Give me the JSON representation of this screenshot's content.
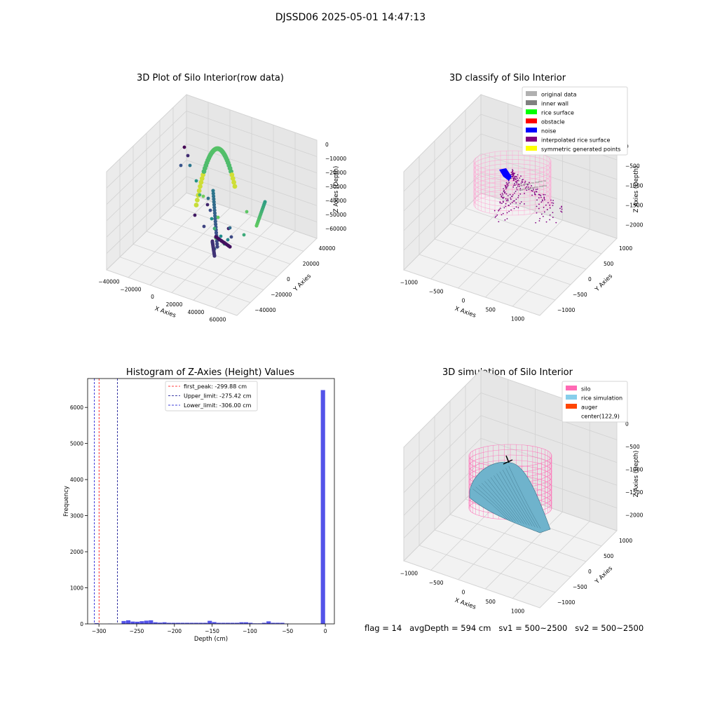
{
  "figure": {
    "suptitle": "DJSSD06 2025-05-01 14:47:13",
    "footer": "flag = 14   avgDepth = 594 cm   sv1 = 500~2500   sv2 = 500~2500"
  },
  "panels": {
    "raw": {
      "title": "3D Plot of Silo Interior(row data)",
      "xlabel": "X Axies",
      "ylabel": "Y Axies",
      "zlabel": "Z Axies (Depth)",
      "xticks": [
        "−40000",
        "−20000",
        "0",
        "20000",
        "40000",
        "60000"
      ],
      "yticks": [
        "−40000",
        "−20000",
        "0",
        "20000",
        "40000"
      ],
      "zticks": [
        "0",
        "−10000",
        "−20000",
        "−30000",
        "−40000",
        "−50000",
        "−60000"
      ]
    },
    "classify": {
      "title": "3D classify of Silo Interior",
      "xlabel": "X Axies",
      "ylabel": "Y Axies",
      "zlabel": "Z Axies (Depth)",
      "xticks": [
        "−1000",
        "−500",
        "0",
        "500",
        "1000"
      ],
      "yticks": [
        "−1000",
        "−500",
        "0",
        "500",
        "1000"
      ],
      "zticks": [
        "0",
        "−500",
        "−1000",
        "−1500",
        "−2000"
      ],
      "legend": [
        {
          "label": "original data",
          "color": "#b0b0b0"
        },
        {
          "label": "inner wall",
          "color": "#808080"
        },
        {
          "label": "rice surface",
          "color": "#00ff00"
        },
        {
          "label": "obstacle",
          "color": "#ff0000"
        },
        {
          "label": "noise",
          "color": "#0000ff"
        },
        {
          "label": "interpolated rice surface",
          "color": "#800080"
        },
        {
          "label": "symmetric generated points",
          "color": "#ffff00"
        }
      ]
    },
    "simulation": {
      "title": "3D simulation of Silo Interior",
      "xlabel": "X Axies",
      "ylabel": "Y Axies",
      "zlabel": "Z Axies (Depth)",
      "xticks": [
        "−1000",
        "−500",
        "0",
        "500",
        "1000"
      ],
      "yticks": [
        "−1000",
        "−500",
        "0",
        "500",
        "1000"
      ],
      "zticks": [
        "0",
        "−500",
        "−1000",
        "−1500",
        "−2000"
      ],
      "legend": [
        {
          "label": "silo",
          "color": "#ff69b4"
        },
        {
          "label": "rice simulation",
          "color": "#87ceeb"
        },
        {
          "label": "auger",
          "color": "#ff4500"
        },
        {
          "label": "center(122,9)",
          "color": "#ffffff"
        }
      ]
    }
  },
  "chart_data": {
    "type": "bar",
    "title": "Histogram of Z-Axies (Height) Values",
    "xlabel": "Depth (cm)",
    "ylabel": "Frequency",
    "xlim": [
      -315,
      12
    ],
    "ylim": [
      0,
      6800
    ],
    "xticks": [
      -300,
      -250,
      -200,
      -150,
      -100,
      -50,
      0
    ],
    "yticks": [
      0,
      1000,
      2000,
      3000,
      4000,
      5000,
      6000
    ],
    "bar_color": "#4a4ae8",
    "bin_width": 6,
    "bins": [
      {
        "x": -303,
        "count": 20
      },
      {
        "x": -285,
        "count": 8
      },
      {
        "x": -267,
        "count": 80
      },
      {
        "x": -261,
        "count": 100
      },
      {
        "x": -255,
        "count": 65
      },
      {
        "x": -249,
        "count": 60
      },
      {
        "x": -243,
        "count": 75
      },
      {
        "x": -237,
        "count": 90
      },
      {
        "x": -231,
        "count": 100
      },
      {
        "x": -225,
        "count": 45
      },
      {
        "x": -219,
        "count": 35
      },
      {
        "x": -213,
        "count": 45
      },
      {
        "x": -207,
        "count": 30
      },
      {
        "x": -201,
        "count": 30
      },
      {
        "x": -195,
        "count": 30
      },
      {
        "x": -189,
        "count": 30
      },
      {
        "x": -183,
        "count": 30
      },
      {
        "x": -177,
        "count": 30
      },
      {
        "x": -171,
        "count": 30
      },
      {
        "x": -165,
        "count": 30
      },
      {
        "x": -159,
        "count": 30
      },
      {
        "x": -153,
        "count": 85
      },
      {
        "x": -147,
        "count": 50
      },
      {
        "x": -141,
        "count": 30
      },
      {
        "x": -135,
        "count": 30
      },
      {
        "x": -129,
        "count": 30
      },
      {
        "x": -123,
        "count": 30
      },
      {
        "x": -117,
        "count": 30
      },
      {
        "x": -111,
        "count": 45
      },
      {
        "x": -105,
        "count": 45
      },
      {
        "x": -99,
        "count": 30
      },
      {
        "x": -93,
        "count": 15
      },
      {
        "x": -87,
        "count": 15
      },
      {
        "x": -81,
        "count": 30
      },
      {
        "x": -75,
        "count": 70
      },
      {
        "x": -69,
        "count": 30
      },
      {
        "x": -63,
        "count": 30
      },
      {
        "x": -57,
        "count": 30
      },
      {
        "x": -51,
        "count": 10
      },
      {
        "x": -3,
        "count": 6480
      }
    ],
    "vlines": [
      {
        "label": "first_peak: -299.88 cm",
        "x": -299.88,
        "color": "#ff0000"
      },
      {
        "label": "Upper_limit: -275.42 cm",
        "x": -275.42,
        "color": "#00008b"
      },
      {
        "label": "Lower_limit: -306.00 cm",
        "x": -306.0,
        "color": "#0000cd"
      }
    ]
  }
}
